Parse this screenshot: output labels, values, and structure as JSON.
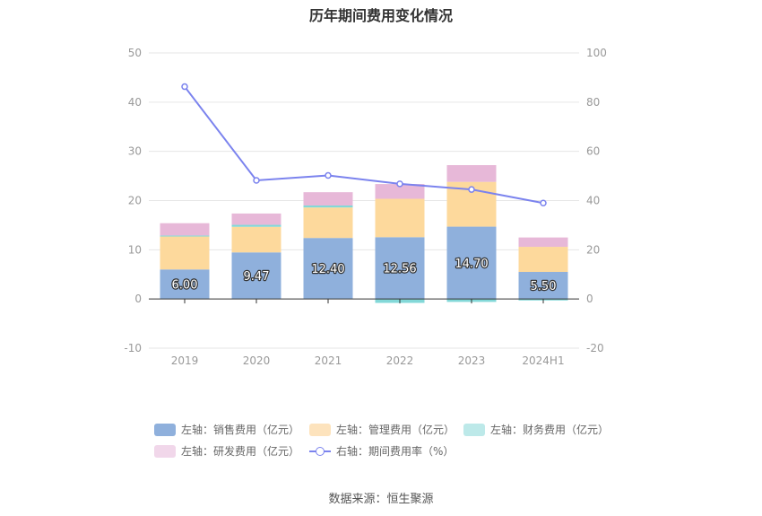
{
  "title": "历年期间费用变化情况",
  "source": "数据来源：恒生聚源",
  "chart_data": {
    "type": "bar",
    "stacked": true,
    "categories": [
      "2019",
      "2020",
      "2021",
      "2022",
      "2023",
      "2024H1"
    ],
    "left_axis": {
      "ylim": [
        -10,
        50
      ],
      "ticks": [
        -10,
        0,
        10,
        20,
        30,
        40,
        50
      ]
    },
    "right_axis": {
      "ylim": [
        -20,
        100
      ],
      "ticks": [
        -20,
        0,
        20,
        40,
        60,
        80,
        100
      ]
    },
    "grid": true,
    "legend_position": "bottom",
    "series": [
      {
        "name": "左轴：销售费用（亿元）",
        "axis": "left",
        "kind": "bar",
        "color": "#8fb0dc",
        "values": [
          6.0,
          9.47,
          12.4,
          12.56,
          14.7,
          5.5
        ],
        "labels": [
          "6.00",
          "9.47",
          "12.40",
          "12.56",
          "14.70",
          "5.50"
        ]
      },
      {
        "name": "左轴：管理费用（亿元）",
        "axis": "left",
        "kind": "bar",
        "color": "#fdd99c",
        "values": [
          6.7,
          5.2,
          6.2,
          7.8,
          9.1,
          5.1
        ]
      },
      {
        "name": "左轴：财务费用（亿元）",
        "axis": "left",
        "kind": "bar",
        "color": "#83d8d8",
        "values": [
          0.2,
          0.4,
          0.4,
          -0.8,
          -0.6,
          -0.3
        ]
      },
      {
        "name": "左轴：研发费用（亿元）",
        "axis": "left",
        "kind": "bar",
        "color": "#e7b8d8",
        "values": [
          2.5,
          2.3,
          2.7,
          3.0,
          3.4,
          1.9
        ]
      },
      {
        "name": "右轴：期间费用率（%）",
        "axis": "right",
        "kind": "line",
        "color": "#7b83ee",
        "values": [
          86.3,
          48.2,
          50.2,
          46.8,
          44.5,
          39.0
        ]
      }
    ]
  }
}
